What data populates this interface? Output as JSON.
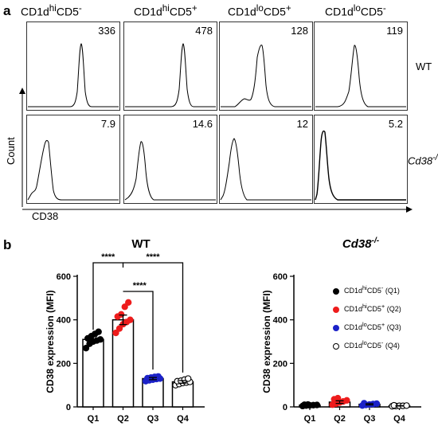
{
  "panel_a": {
    "label": "a",
    "columns": [
      {
        "base": "CD1d",
        "sup1": "hi",
        "mid": "CD5",
        "sup2": "-"
      },
      {
        "base": "CD1d",
        "sup1": "hi",
        "mid": "CD5",
        "sup2": "+"
      },
      {
        "base": "CD1d",
        "sup1": "lo",
        "mid": "CD5",
        "sup2": "+"
      },
      {
        "base": "CD1d",
        "sup1": "lo",
        "mid": "CD5",
        "sup2": "-"
      }
    ],
    "rows": [
      {
        "label": "WT",
        "italic": false,
        "values": [
          "336",
          "478",
          "128",
          "119"
        ]
      },
      {
        "label": "Cd38",
        "sup": "-/-",
        "italic": true,
        "values": [
          "7.9",
          "14.6",
          "12",
          "5.2"
        ]
      }
    ],
    "y_axis_label": "Count",
    "x_axis_label": "CD38"
  },
  "panel_b": {
    "label": "b",
    "y_axis_label": "CD38 expression (MFI)",
    "legend": [
      {
        "text": "CD1d",
        "sup1": "hi",
        "mid": "CD5",
        "sup2": "-",
        "tail": " (Q1)",
        "color": "#000000",
        "filled": true
      },
      {
        "text": "CD1d",
        "sup1": "hi",
        "mid": "CD5",
        "sup2": "+",
        "tail": " (Q2)",
        "color": "#ee1c1c",
        "filled": true
      },
      {
        "text": "CD1d",
        "sup1": "lo",
        "mid": "CD5",
        "sup2": "+",
        "tail": " (Q3)",
        "color": "#1c22c8",
        "filled": true
      },
      {
        "text": "CD1d",
        "sup1": "lo",
        "mid": "CD5",
        "sup2": "-",
        "tail": " (Q4)",
        "color": "#000000",
        "filled": false
      }
    ]
  },
  "chart_data": [
    {
      "type": "bar",
      "title": "WT",
      "categories": [
        "Q1",
        "Q2",
        "Q3",
        "Q4"
      ],
      "values": [
        310,
        400,
        130,
        115
      ],
      "errors": [
        15,
        22,
        5,
        6
      ],
      "points": [
        [
          270,
          290,
          300,
          305,
          310,
          315,
          325,
          335,
          345
        ],
        [
          340,
          360,
          380,
          390,
          400,
          415,
          425,
          460,
          480
        ],
        [
          118,
          122,
          125,
          128,
          130,
          132,
          135,
          138,
          140
        ],
        [
          100,
          105,
          110,
          112,
          115,
          118,
          120,
          125,
          130
        ]
      ],
      "point_colors": [
        "#000000",
        "#ee1c1c",
        "#1c22c8",
        "#000000"
      ],
      "point_filled": [
        true,
        true,
        true,
        false
      ],
      "ylabel": "CD38 expression (MFI)",
      "ylim": [
        0,
        600
      ],
      "yticks": [
        0,
        200,
        400,
        600
      ],
      "significance": [
        {
          "from": "Q1",
          "to": "Q2",
          "label": "****"
        },
        {
          "from": "Q2",
          "to": "Q3",
          "label": "****"
        },
        {
          "from": "Q2",
          "to": "Q4",
          "label": "****"
        }
      ]
    },
    {
      "type": "bar",
      "title": "Cd38",
      "title_sup": "-/-",
      "categories": [
        "Q1",
        "Q2",
        "Q3",
        "Q4"
      ],
      "values": [
        8,
        22,
        12,
        5
      ],
      "errors": [
        2,
        6,
        3,
        1
      ],
      "points": [
        [
          4,
          6,
          7,
          8,
          9,
          10,
          11
        ],
        [
          10,
          15,
          20,
          25,
          30,
          35,
          40
        ],
        [
          6,
          9,
          11,
          13,
          15,
          17
        ],
        [
          3,
          4,
          5,
          5,
          6,
          7
        ]
      ],
      "point_colors": [
        "#000000",
        "#ee1c1c",
        "#1c22c8",
        "#000000"
      ],
      "point_filled": [
        true,
        true,
        true,
        false
      ],
      "ylabel": "CD38 expression (MFI)",
      "ylim": [
        0,
        600
      ],
      "yticks": [
        0,
        200,
        400,
        600
      ]
    }
  ]
}
